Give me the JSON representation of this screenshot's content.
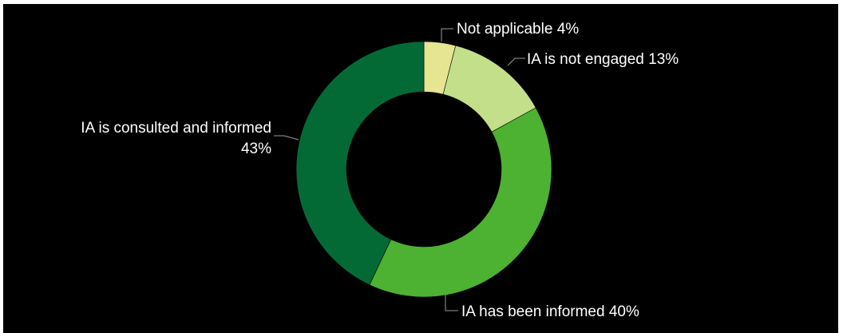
{
  "chart_data": {
    "type": "pie",
    "donut": true,
    "title": "",
    "slices": [
      {
        "label": "Not applicable 4%",
        "value": 4,
        "color": "#e5e592"
      },
      {
        "label": "IA is not engaged 13%",
        "value": 13,
        "color": "#c3df89"
      },
      {
        "label": "IA has been informed 40%",
        "value": 40,
        "color": "#4db231"
      },
      {
        "label_line1": "IA is consulted and informed",
        "label_line2": "43%",
        "value": 43,
        "color": "#036a36"
      }
    ],
    "background": "#000000"
  }
}
